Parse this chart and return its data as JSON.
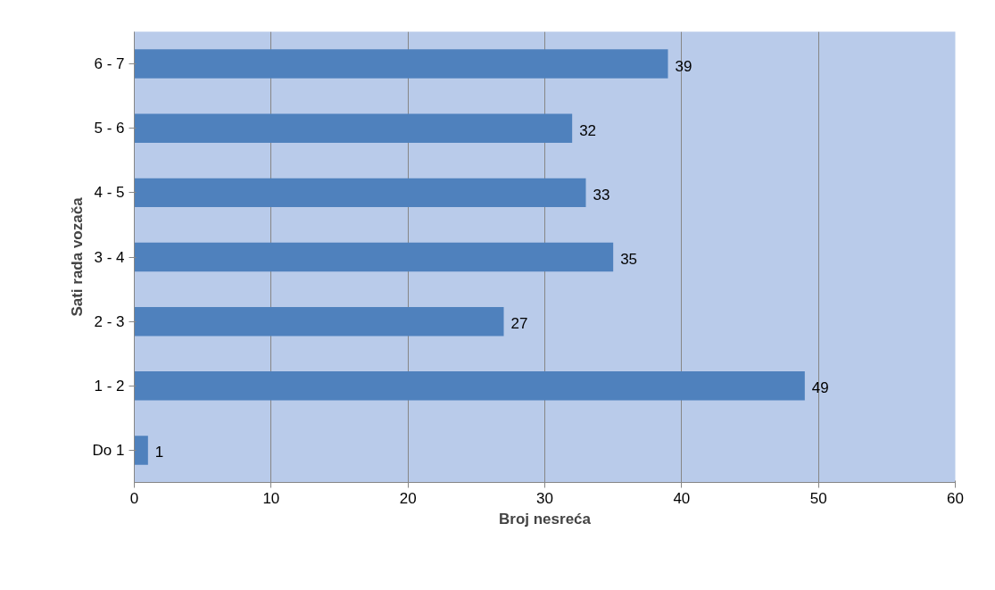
{
  "chart_data": {
    "type": "bar",
    "orientation": "horizontal",
    "xlabel": "Broj nesreća",
    "ylabel": "Sati rada vozača",
    "categories": [
      "6 - 7",
      "5 - 6",
      "4 - 5",
      "3 - 4",
      "2 - 3",
      "1 - 2",
      "Do 1"
    ],
    "values": [
      39,
      32,
      33,
      35,
      27,
      49,
      1
    ],
    "color": "#4f81bd",
    "xlim": [
      0,
      60
    ],
    "xticks": [
      0,
      10,
      20,
      30,
      40,
      50,
      60
    ],
    "grid": "x",
    "data_labels": true
  }
}
